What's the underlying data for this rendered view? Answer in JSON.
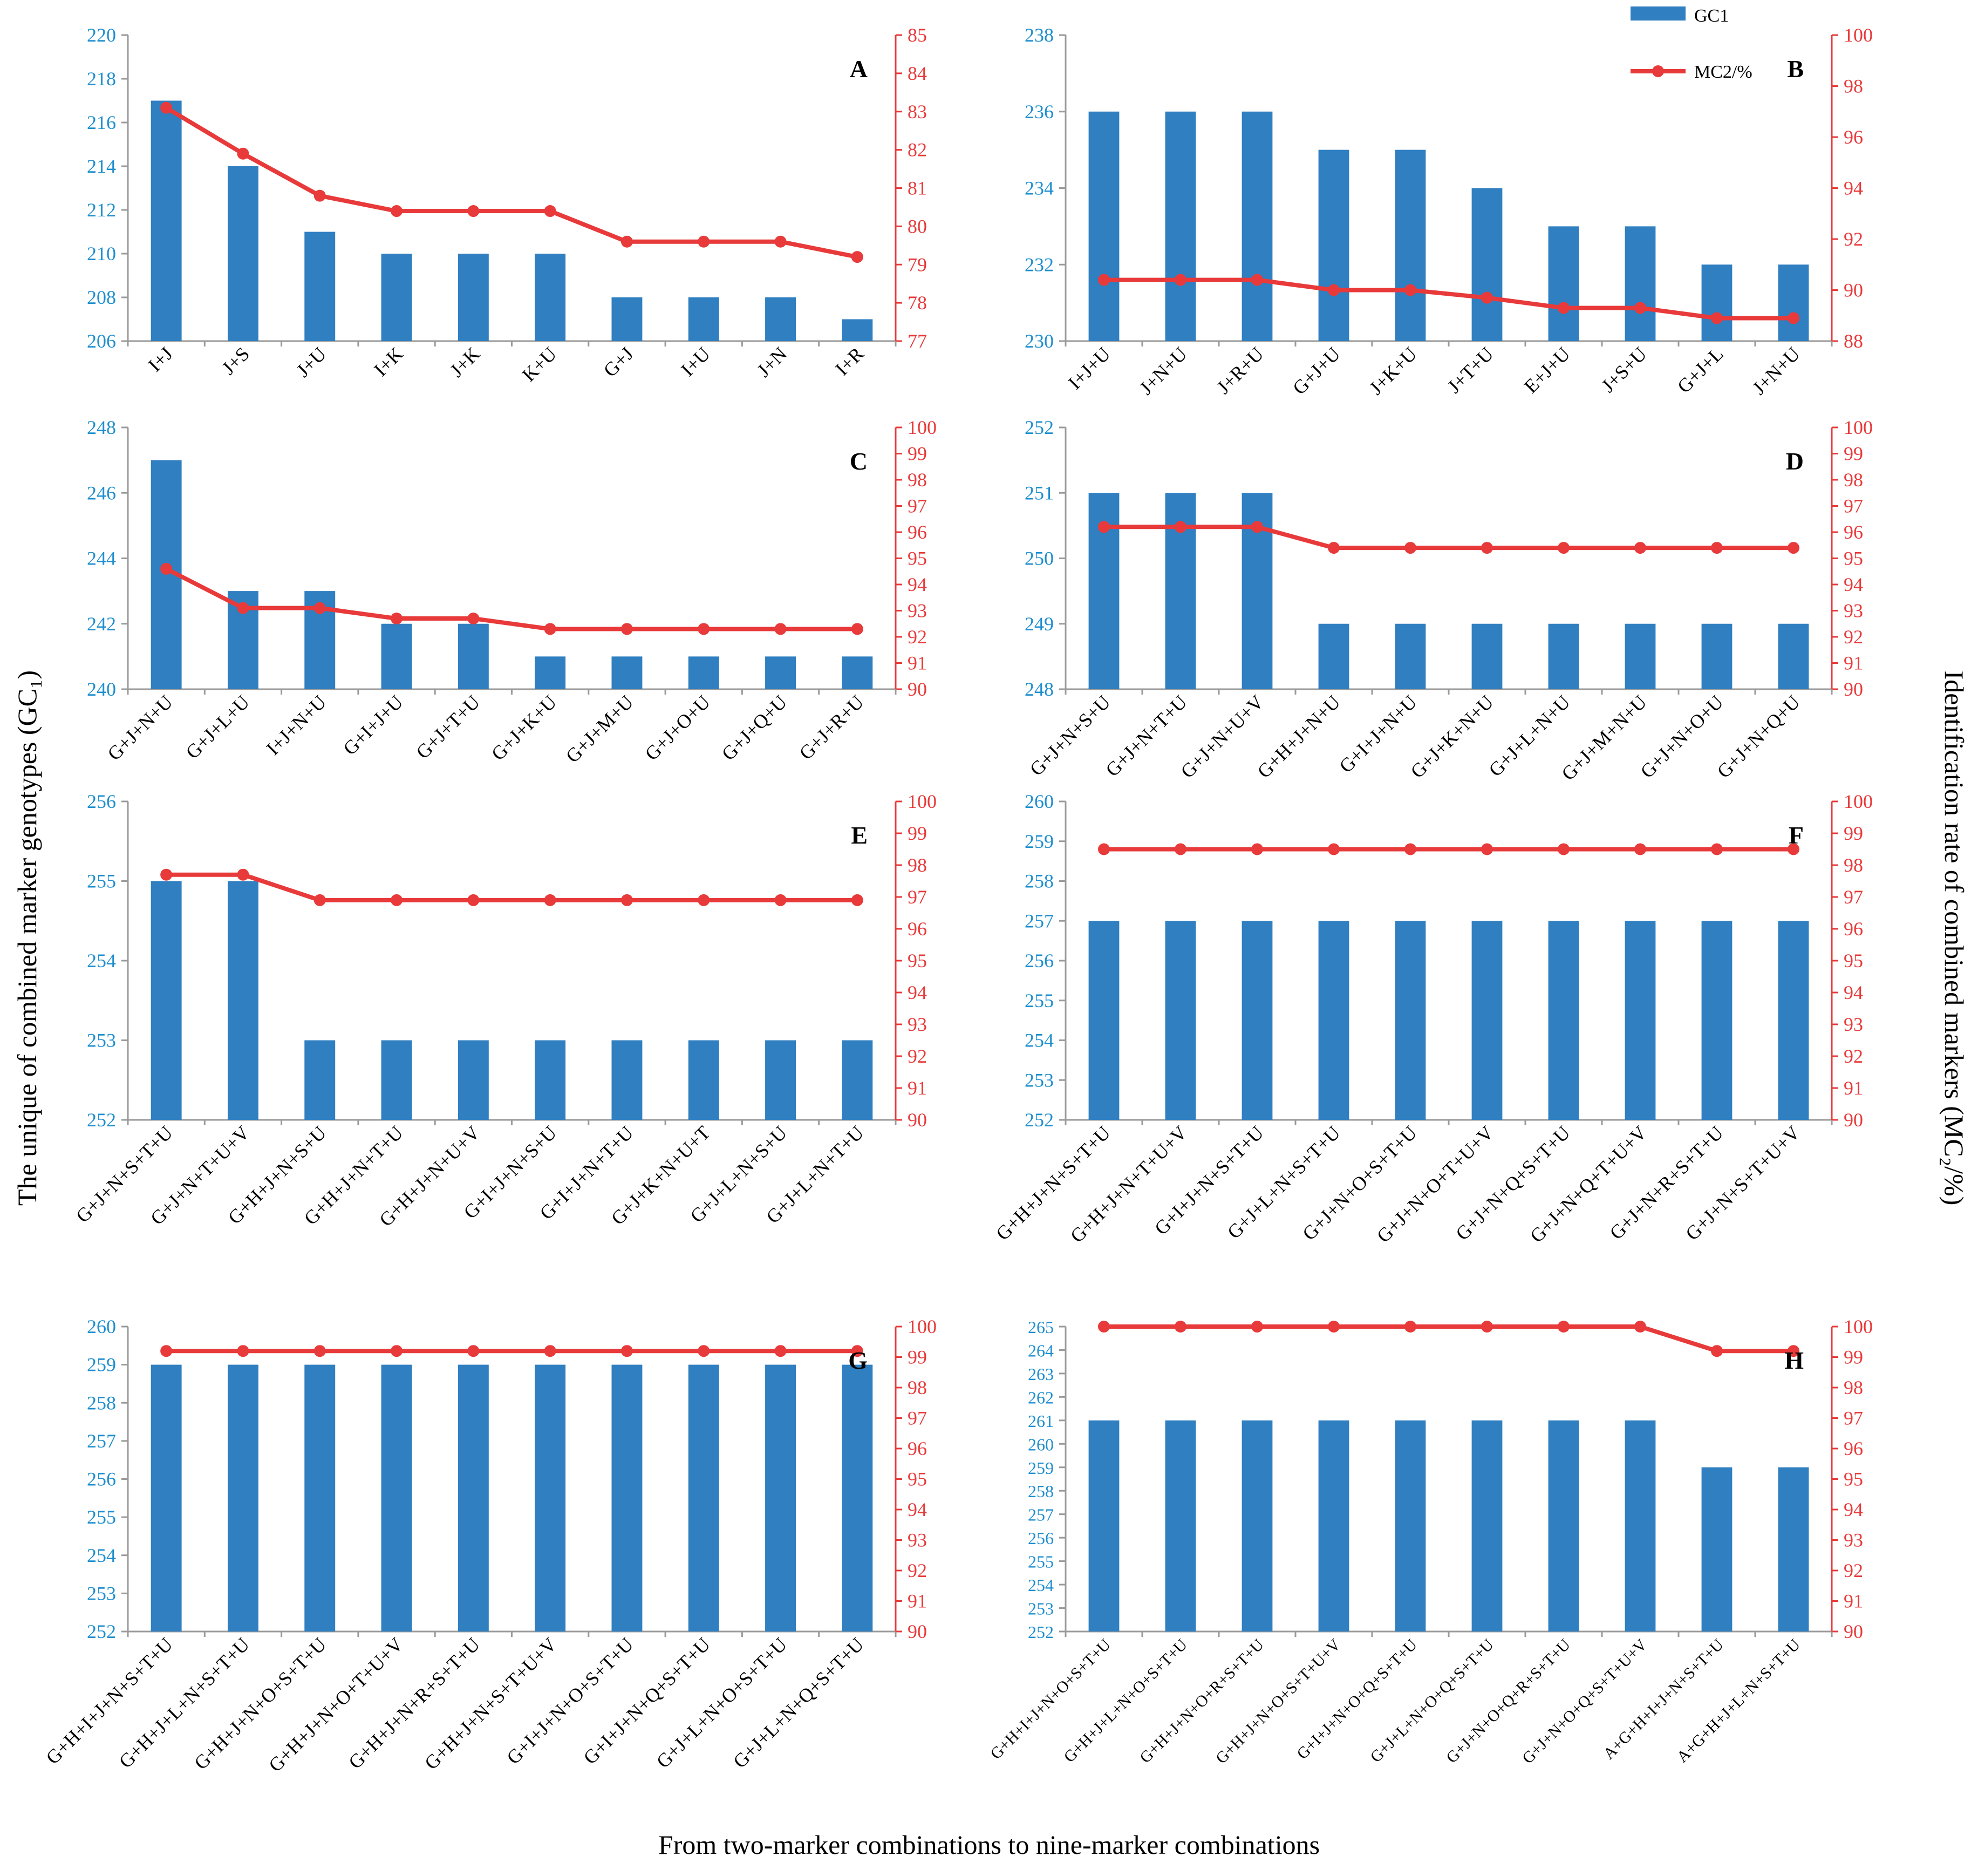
{
  "figure": {
    "ylabel_left": "The unique of combined marker genotypes (GC₁)",
    "ylabel_right": "Identification rate of combined markers (MC₂/%)",
    "xlabel": "From two-marker  combinations to nine-marker combinations"
  },
  "legend": {
    "bar": "GC1",
    "line": "MC2/%",
    "location": "panel B, top"
  },
  "colors": {
    "bar": "#2f7fc1",
    "line": "#e83a3a",
    "left_axis_text": "#1f8fcf",
    "right_axis_text": "#e83a3a"
  },
  "chart_data": [
    {
      "type": "bar+line",
      "panel": "A",
      "categories": [
        "I+J",
        "J+S",
        "J+U",
        "I+K",
        "J+K",
        "K+U",
        "G+J",
        "I+U",
        "J+N",
        "I+R"
      ],
      "series": [
        {
          "name": "GC1",
          "axis": "left",
          "values": [
            217,
            214,
            211,
            210,
            210,
            210,
            208,
            208,
            208,
            207
          ]
        },
        {
          "name": "MC2/%",
          "axis": "right",
          "values": [
            83.1,
            81.9,
            80.8,
            80.4,
            80.4,
            80.4,
            79.6,
            79.6,
            79.6,
            79.2
          ]
        }
      ],
      "ylim_left": [
        206,
        220
      ],
      "yticks_left": [
        206,
        208,
        210,
        212,
        214,
        216,
        218,
        220
      ],
      "ylim_right": [
        77,
        85
      ],
      "yticks_right": [
        77,
        78,
        79,
        80,
        81,
        82,
        83,
        84,
        85
      ]
    },
    {
      "type": "bar+line",
      "panel": "B",
      "categories": [
        "I+J+U",
        "J+N+U",
        "J+R+U",
        "G+J+U",
        "J+K+U",
        "J+T+U",
        "E+J+U",
        "J+S+U",
        "G+J+L",
        "J+N+U"
      ],
      "series": [
        {
          "name": "GC1",
          "axis": "left",
          "values": [
            236,
            236,
            236,
            235,
            235,
            234,
            233,
            233,
            232,
            232
          ]
        },
        {
          "name": "MC2/%",
          "axis": "right",
          "values": [
            90.4,
            90.4,
            90.4,
            90.0,
            90.0,
            89.7,
            89.3,
            89.3,
            88.9,
            88.9
          ]
        }
      ],
      "ylim_left": [
        230,
        238
      ],
      "yticks_left": [
        230,
        232,
        234,
        236,
        238
      ],
      "ylim_right": [
        88,
        100
      ],
      "yticks_right": [
        88,
        90,
        92,
        94,
        96,
        98,
        100
      ]
    },
    {
      "type": "bar+line",
      "panel": "C",
      "categories": [
        "G+J+N+U",
        "G+J+L+U",
        "I+J+N+U",
        "G+I+J+U",
        "G+J+T+U",
        "G+J+K+U",
        "G+J+M+U",
        "G+J+O+U",
        "G+J+Q+U",
        "G+J+R+U"
      ],
      "series": [
        {
          "name": "GC1",
          "axis": "left",
          "values": [
            247,
            243,
            243,
            242,
            242,
            241,
            241,
            241,
            241,
            241
          ]
        },
        {
          "name": "MC2/%",
          "axis": "right",
          "values": [
            94.6,
            93.1,
            93.1,
            92.7,
            92.7,
            92.3,
            92.3,
            92.3,
            92.3,
            92.3
          ]
        }
      ],
      "ylim_left": [
        240,
        248
      ],
      "yticks_left": [
        240,
        242,
        244,
        246,
        248
      ],
      "ylim_right": [
        90,
        100
      ],
      "yticks_right": [
        90,
        91,
        92,
        93,
        94,
        95,
        96,
        97,
        98,
        99,
        100
      ]
    },
    {
      "type": "bar+line",
      "panel": "D",
      "categories": [
        "G+J+N+S+U",
        "G+J+N+T+U",
        "G+J+N+U+V",
        "G+H+J+N+U",
        "G+I+J+N+U",
        "G+J+K+N+U",
        "G+J+L+N+U",
        "G+J+M+N+U",
        "G+J+N+O+U",
        "G+J+N+Q+U"
      ],
      "series": [
        {
          "name": "GC1",
          "axis": "left",
          "values": [
            251,
            251,
            251,
            249,
            249,
            249,
            249,
            249,
            249,
            249
          ]
        },
        {
          "name": "MC2/%",
          "axis": "right",
          "values": [
            96.2,
            96.2,
            96.2,
            95.4,
            95.4,
            95.4,
            95.4,
            95.4,
            95.4,
            95.4
          ]
        }
      ],
      "ylim_left": [
        248,
        252
      ],
      "yticks_left": [
        248,
        249,
        250,
        251,
        252
      ],
      "ylim_right": [
        90,
        100
      ],
      "yticks_right": [
        90,
        91,
        92,
        93,
        94,
        95,
        96,
        97,
        98,
        99,
        100
      ]
    },
    {
      "type": "bar+line",
      "panel": "E",
      "categories": [
        "G+J+N+S+T+U",
        "G+J+N+T+U+V",
        "G+H+J+N+S+U",
        "G+H+J+N+T+U",
        "G+H+J+N+U+V",
        "G+I+J+N+S+U",
        "G+I+J+N+T+U",
        "G+J+K+N+U+T",
        "G+J+L+N+S+U",
        "G+J+L+N+T+U"
      ],
      "series": [
        {
          "name": "GC1",
          "axis": "left",
          "values": [
            255,
            255,
            253,
            253,
            253,
            253,
            253,
            253,
            253,
            253
          ]
        },
        {
          "name": "MC2/%",
          "axis": "right",
          "values": [
            97.7,
            97.7,
            96.9,
            96.9,
            96.9,
            96.9,
            96.9,
            96.9,
            96.9,
            96.9
          ]
        }
      ],
      "ylim_left": [
        252,
        256
      ],
      "yticks_left": [
        252,
        253,
        254,
        255,
        256
      ],
      "ylim_right": [
        90,
        100
      ],
      "yticks_right": [
        90,
        91,
        92,
        93,
        94,
        95,
        96,
        97,
        98,
        99,
        100
      ]
    },
    {
      "type": "bar+line",
      "panel": "F",
      "categories": [
        "G+H+J+N+S+T+U",
        "G+H+J+N+T+U+V",
        "G+I+J+N+S+T+U",
        "G+J+L+N+S+T+U",
        "G+J+N+O+S+T+U",
        "G+J+N+O+T+U+V",
        "G+J+N+Q+S+T+U",
        "G+J+N+Q+T+U+V",
        "G+J+N+R+S+T+U",
        "G+J+N+S+T+U+V"
      ],
      "series": [
        {
          "name": "GC1",
          "axis": "left",
          "values": [
            257,
            257,
            257,
            257,
            257,
            257,
            257,
            257,
            257,
            257
          ]
        },
        {
          "name": "MC2/%",
          "axis": "right",
          "values": [
            98.5,
            98.5,
            98.5,
            98.5,
            98.5,
            98.5,
            98.5,
            98.5,
            98.5,
            98.5
          ]
        }
      ],
      "ylim_left": [
        252,
        260
      ],
      "yticks_left": [
        252,
        253,
        254,
        255,
        256,
        257,
        258,
        259,
        260
      ],
      "ylim_right": [
        90,
        100
      ],
      "yticks_right": [
        90,
        91,
        92,
        93,
        94,
        95,
        96,
        97,
        98,
        99,
        100
      ]
    },
    {
      "type": "bar+line",
      "panel": "G",
      "categories": [
        "G+H+I+J+N+S+T+U",
        "G+H+J+L+N+S+T+U",
        "G+H+J+N+O+S+T+U",
        "G+H+J+N+O+T+U+V",
        "G+H+J+N+R+S+T+U",
        "G+H+J+N+S+T+U+V",
        "G+I+J+N+O+S+T+U",
        "G+I+J+N+Q+S+T+U",
        "G+J+L+N+O+S+T+U",
        "G+J+L+N+Q+S+T+U"
      ],
      "series": [
        {
          "name": "GC1",
          "axis": "left",
          "values": [
            259,
            259,
            259,
            259,
            259,
            259,
            259,
            259,
            259,
            259
          ]
        },
        {
          "name": "MC2/%",
          "axis": "right",
          "values": [
            99.2,
            99.2,
            99.2,
            99.2,
            99.2,
            99.2,
            99.2,
            99.2,
            99.2,
            99.2
          ]
        }
      ],
      "ylim_left": [
        252,
        260
      ],
      "yticks_left": [
        252,
        253,
        254,
        255,
        256,
        257,
        258,
        259,
        260
      ],
      "ylim_right": [
        90,
        100
      ],
      "yticks_right": [
        90,
        91,
        92,
        93,
        94,
        95,
        96,
        97,
        98,
        99,
        100
      ]
    },
    {
      "type": "bar+line",
      "panel": "H",
      "categories": [
        "G+H+I+J+N+O+S+T+U",
        "G+H+J+L+N+O+S+T+U",
        "G+H+J+N+O+R+S+T+U",
        "G+H+J+N+O+S+T+U+V",
        "G+I+J+N+O+Q+S+T+U",
        "G+J+L+N+O+Q+S+T+U",
        "G+J+N+O+Q+R+S+T+U",
        "G+J+N+O+Q+S+T+U+V",
        "A+G+H+I+J+N+S+T+U",
        "A+G+H+J+L+N+S+T+U"
      ],
      "series": [
        {
          "name": "GC1",
          "axis": "left",
          "values": [
            261,
            261,
            261,
            261,
            261,
            261,
            261,
            261,
            259,
            259
          ]
        },
        {
          "name": "MC2/%",
          "axis": "right",
          "values": [
            100,
            100,
            100,
            100,
            100,
            100,
            100,
            100,
            99.2,
            99.2
          ]
        }
      ],
      "ylim_left": [
        252,
        265
      ],
      "yticks_left": [
        252,
        253,
        254,
        255,
        256,
        257,
        258,
        259,
        260,
        261,
        262,
        263,
        264,
        265
      ],
      "ylim_right": [
        90,
        100
      ],
      "yticks_right": [
        90,
        91,
        92,
        93,
        94,
        95,
        96,
        97,
        98,
        99,
        100
      ]
    }
  ]
}
